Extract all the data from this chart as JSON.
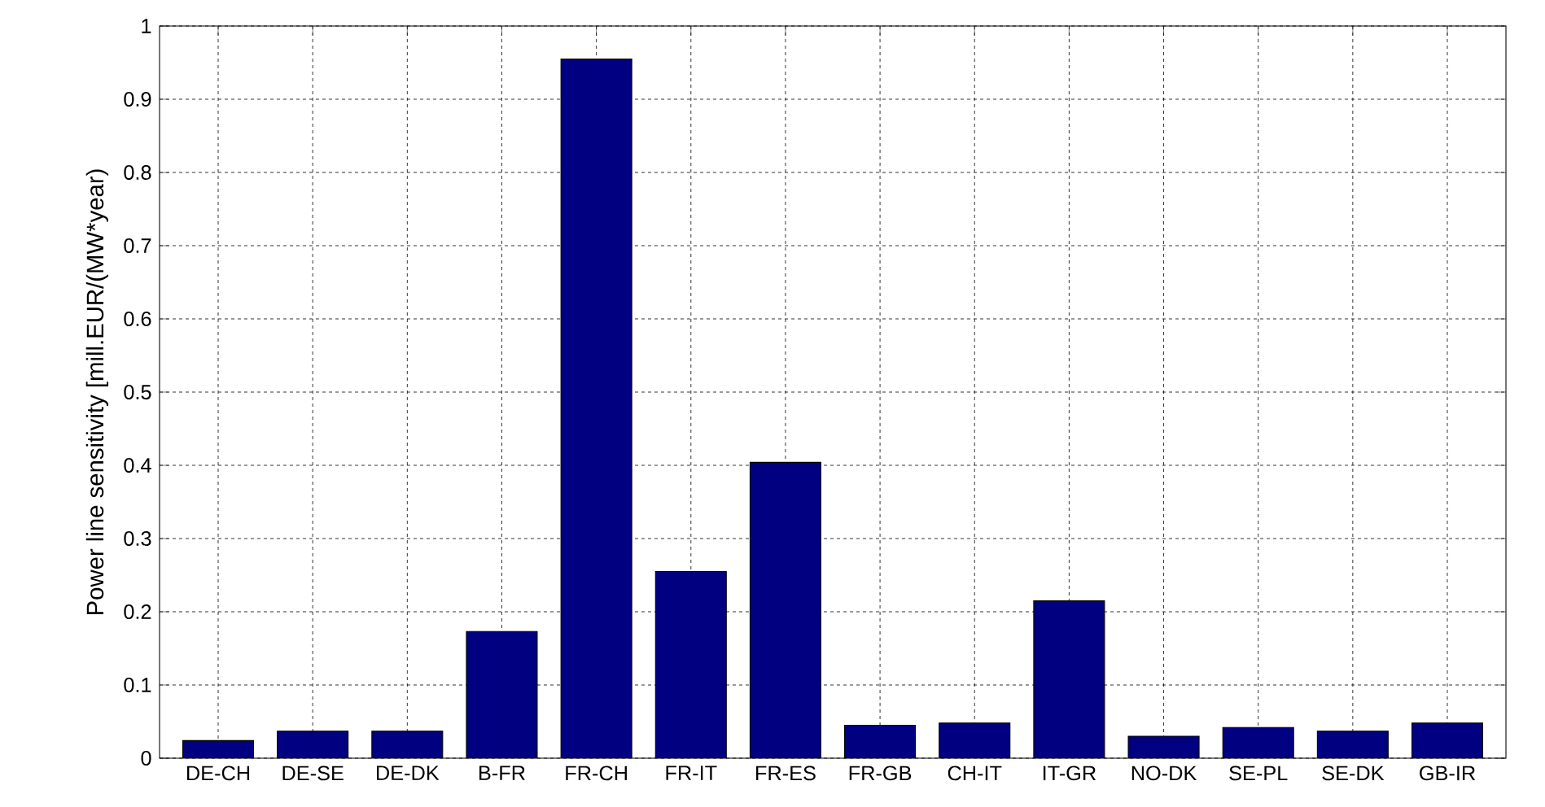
{
  "chart_data": {
    "type": "bar",
    "ylabel": "Power line sensitivity [mill.EUR/(MW*year)",
    "categories": [
      "DE-CH",
      "DE-SE",
      "DE-DK",
      "B-FR",
      "FR-CH",
      "FR-IT",
      "FR-ES",
      "FR-GB",
      "CH-IT",
      "IT-GR",
      "NO-DK",
      "SE-PL",
      "SE-DK",
      "GB-IR"
    ],
    "values": [
      0.024,
      0.037,
      0.037,
      0.173,
      0.955,
      0.255,
      0.404,
      0.045,
      0.048,
      0.215,
      0.03,
      0.042,
      0.037,
      0.048
    ],
    "color": "#000080",
    "ylim": [
      0,
      1
    ],
    "yticks": [
      0,
      0.1,
      0.2,
      0.3,
      0.4,
      0.5,
      0.6,
      0.7,
      0.8,
      0.9,
      1
    ],
    "grid": true
  }
}
